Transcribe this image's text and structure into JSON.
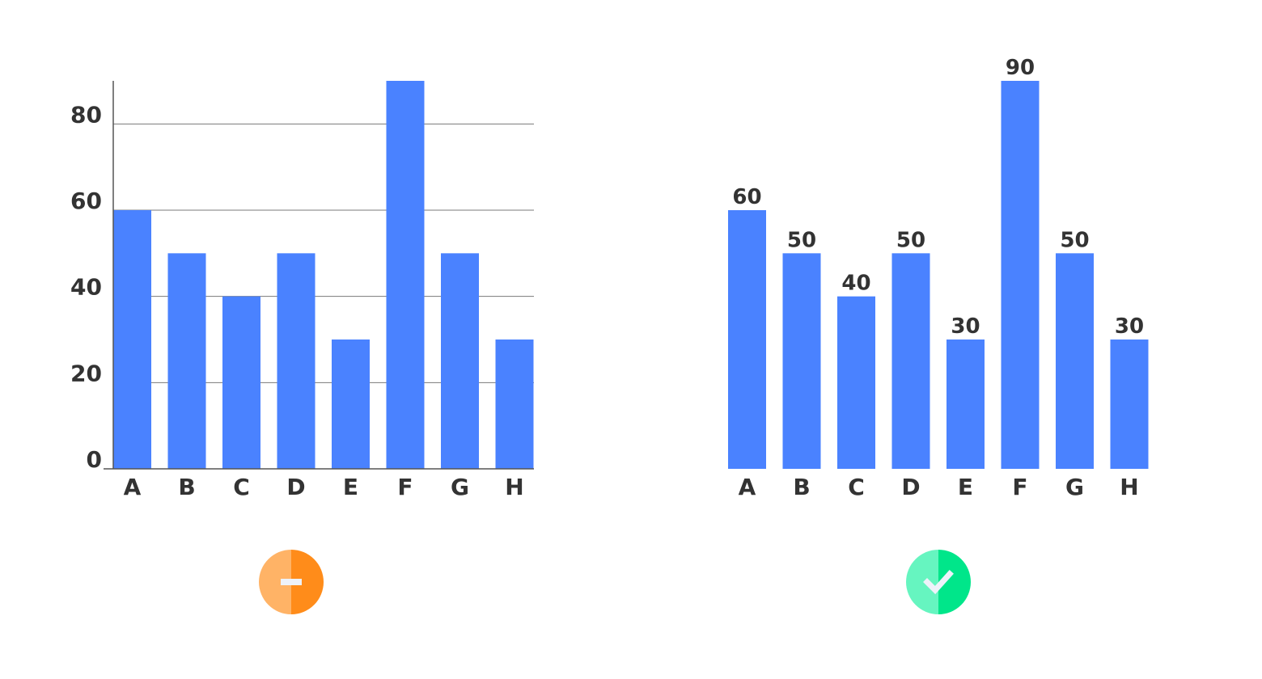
{
  "colors": {
    "bar": "#4a82ff",
    "text": "#333333",
    "grid": "#7a7a7a",
    "axis": "#555555",
    "bad_badge_light": "#ffb366",
    "bad_badge_dark": "#ff8c1a",
    "good_badge_light": "#66f5c0",
    "good_badge_dark": "#00e68a",
    "badge_glyph": "#eef2fa"
  },
  "chart_data": [
    {
      "type": "bar",
      "categories": [
        "A",
        "B",
        "C",
        "D",
        "E",
        "F",
        "G",
        "H"
      ],
      "values": [
        60,
        50,
        40,
        50,
        30,
        90,
        50,
        30
      ],
      "ylim": [
        0,
        90
      ],
      "yticks": [
        "0",
        "20",
        "40",
        "60",
        "80"
      ],
      "grid": true,
      "data_labels": false,
      "badge_icon": "minus-icon"
    },
    {
      "type": "bar",
      "categories": [
        "A",
        "B",
        "C",
        "D",
        "E",
        "F",
        "G",
        "H"
      ],
      "values": [
        60,
        50,
        40,
        50,
        30,
        90,
        50,
        30
      ],
      "ylim": [
        0,
        90
      ],
      "yticks": [],
      "grid": false,
      "data_labels": true,
      "badge_icon": "checkmark-icon"
    }
  ]
}
